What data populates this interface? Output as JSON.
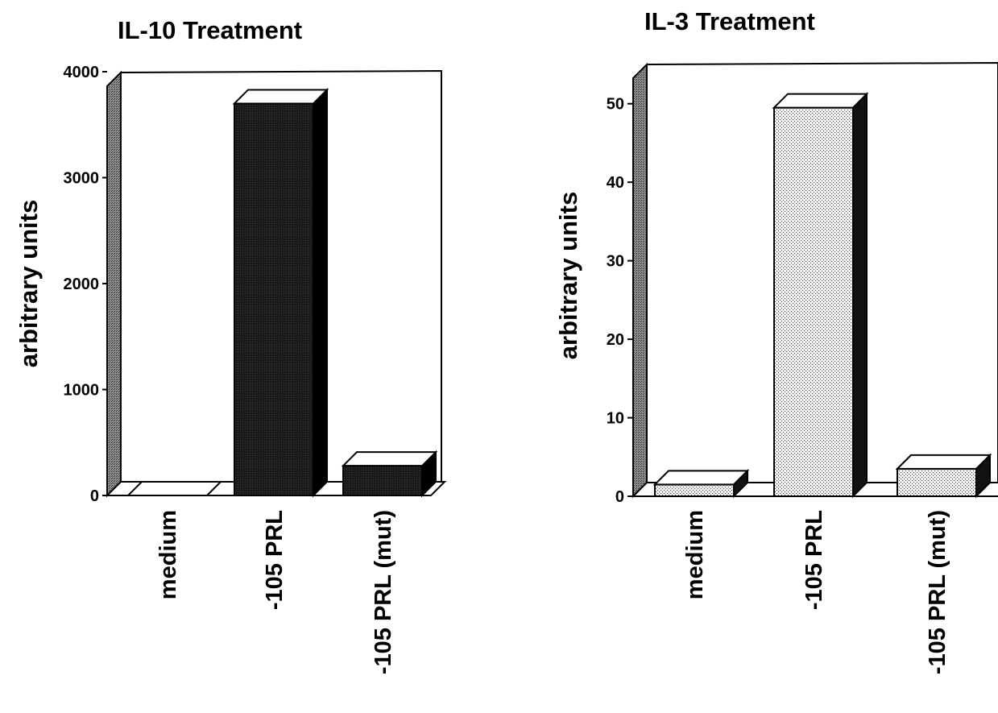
{
  "chart_data": [
    {
      "type": "bar",
      "title": "IL-10 Treatment",
      "ylabel": "arbitrary units",
      "xlabel": "",
      "categories": [
        "medium",
        "-105 PRL",
        "-105 PRL (mut)"
      ],
      "values": [
        0,
        3700,
        280
      ],
      "yticks": [
        "0",
        "1000",
        "2000",
        "3000",
        "4000"
      ],
      "ylim": [
        0,
        4000
      ],
      "bar_fill": "solid-dark",
      "grid": false,
      "style": "3d"
    },
    {
      "type": "bar",
      "title": "IL-3 Treatment",
      "ylabel": "arbitrary units",
      "xlabel": "",
      "categories": [
        "medium",
        "-105 PRL",
        "-105 PRL (mut)"
      ],
      "values": [
        1.5,
        49.5,
        3.5
      ],
      "yticks": [
        "0",
        "10",
        "20",
        "30",
        "40",
        "50"
      ],
      "ylim": [
        0,
        55
      ],
      "bar_fill": "stippled-light",
      "grid": false,
      "style": "3d"
    }
  ],
  "colors": {
    "ink": "#000000",
    "paper": "#ffffff",
    "dark_bar_front": "#161616",
    "dark_bar_side": "#000000",
    "light_bar_base": "#e6e6e6",
    "left_wall": "#7a7a7a"
  }
}
